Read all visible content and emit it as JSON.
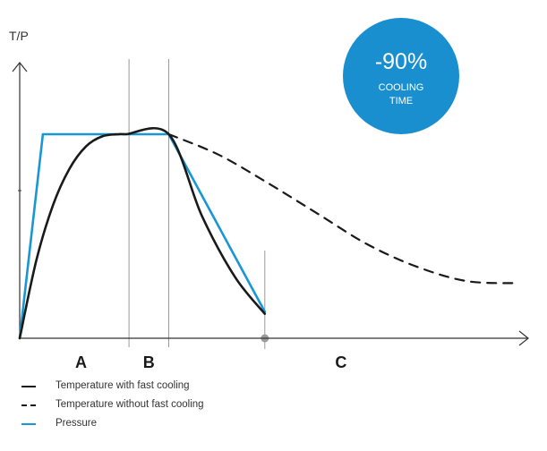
{
  "chart_data": {
    "type": "line",
    "title": "",
    "ylabel": "T/P",
    "xlabel": "",
    "phases": [
      "A",
      "B",
      "C"
    ],
    "phase_boundaries": [
      0.33,
      0.45,
      0.74
    ],
    "xlim": [
      0,
      1.55
    ],
    "ylim": [
      0,
      1.05
    ],
    "series": [
      {
        "name": "Temperature with fast cooling",
        "color": "#1a1a1a",
        "style": "solid",
        "x": [
          0,
          0.05,
          0.1,
          0.15,
          0.2,
          0.25,
          0.3,
          0.32,
          0.45,
          0.55,
          0.65,
          0.74
        ],
        "y": [
          0.0,
          0.38,
          0.65,
          0.83,
          0.94,
          0.99,
          1.0,
          1.0,
          1.0,
          0.6,
          0.3,
          0.12
        ]
      },
      {
        "name": "Temperature without fast cooling",
        "color": "#1a1a1a",
        "style": "dashed",
        "x": [
          0.45,
          0.6,
          0.75,
          0.9,
          1.05,
          1.2,
          1.35,
          1.5
        ],
        "y": [
          1.0,
          0.9,
          0.76,
          0.61,
          0.46,
          0.35,
          0.28,
          0.27
        ]
      },
      {
        "name": "Pressure",
        "color": "#1996d4",
        "style": "solid",
        "x": [
          0,
          0.07,
          0.45,
          0.74
        ],
        "y": [
          0.0,
          1.0,
          1.0,
          0.13
        ]
      }
    ],
    "grid": false,
    "legend": "bottom-left"
  },
  "badge": {
    "value": "-90%",
    "line1": "COOLING",
    "line2": "TIME",
    "color": "#1a8fd0"
  }
}
